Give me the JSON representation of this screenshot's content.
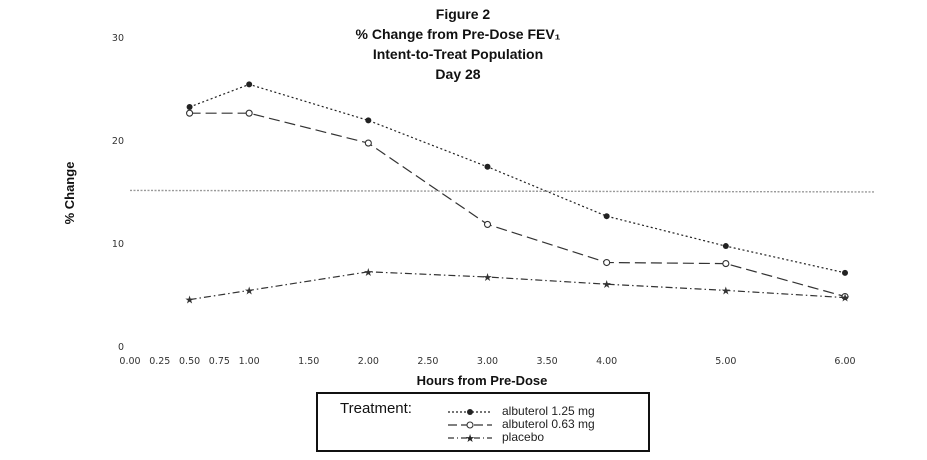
{
  "figure": {
    "title_lines": [
      "Figure 2",
      "% Change from Pre-Dose FEV₁",
      "Intent-to-Treat Population",
      "Day 28"
    ]
  },
  "legend": {
    "heading": "Treatment:",
    "entries": [
      "albuterol 1.25 mg",
      "albuterol 0.63 mg",
      "placebo"
    ]
  },
  "chart_data": {
    "type": "line",
    "title": "Figure 2 / % Change from Pre-Dose FEV₁ / Intent-to-Treat Population / Day 28",
    "xlabel": "Hours from Pre-Dose",
    "ylabel": "% Change",
    "xlim": [
      0,
      6
    ],
    "ylim": [
      0,
      30
    ],
    "x_ticks": [
      0,
      0.25,
      0.5,
      0.75,
      1,
      1.5,
      2,
      2.5,
      3,
      3.5,
      4,
      5,
      6
    ],
    "x_tick_labels": [
      "0.00",
      "0.25",
      "0.50",
      "0.75",
      "1.00",
      "1.50",
      "2.00",
      "2.50",
      "3.00",
      "3.50",
      "4.00",
      "5.00",
      "6.00"
    ],
    "y_ticks": [
      0,
      10,
      20,
      30
    ],
    "y_tick_labels": [
      "0",
      "10",
      "20",
      "30"
    ],
    "grid": false,
    "legend_position": "bottom",
    "reference_line": {
      "y": 15.2,
      "color": "#9a9a9a"
    },
    "series": [
      {
        "name": "albuterol 1.25 mg",
        "marker": "filled-circle",
        "line_style": "dotted",
        "color": "#222222",
        "x": [
          0.5,
          1,
          2,
          3,
          4,
          5,
          6
        ],
        "y": [
          23.3,
          25.5,
          22.0,
          17.5,
          12.7,
          9.8,
          7.2
        ]
      },
      {
        "name": "albuterol 0.63 mg",
        "marker": "open-circle",
        "line_style": "long-dash",
        "color": "#333333",
        "x": [
          0.5,
          1,
          2,
          3,
          4,
          5,
          6
        ],
        "y": [
          22.7,
          22.7,
          19.8,
          11.9,
          8.2,
          8.1,
          4.9
        ]
      },
      {
        "name": "placebo",
        "marker": "star",
        "line_style": "dash-dot",
        "color": "#333333",
        "x": [
          0.5,
          1,
          2,
          3,
          4,
          5,
          6
        ],
        "y": [
          4.6,
          5.5,
          7.3,
          6.8,
          6.1,
          5.5,
          4.8
        ]
      }
    ]
  }
}
